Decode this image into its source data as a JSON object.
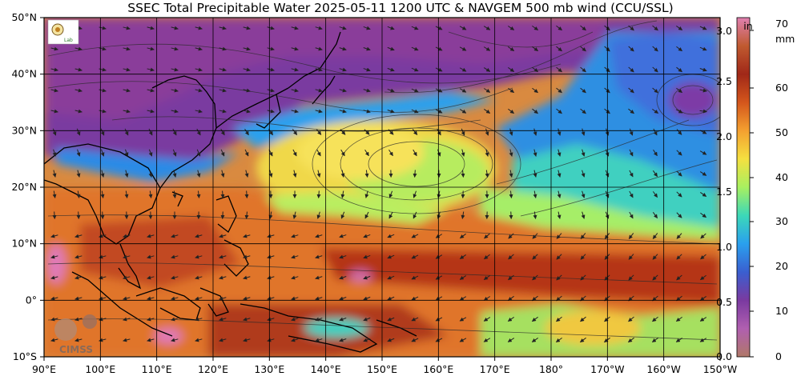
{
  "title": "SSEC Total Precipitable Water  2025-05-11 1200 UTC & NAVGEM 500 mb wind (CCU/SSL)",
  "lat_labels": [
    "50°N",
    "40°N",
    "30°N",
    "20°N",
    "10°N",
    "0°",
    "10°S"
  ],
  "lon_labels": [
    "90°E",
    "100°E",
    "110°E",
    "120°E",
    "130°E",
    "140°E",
    "150°E",
    "160°E",
    "170°E",
    "180°",
    "170°W",
    "160°W",
    "150°W"
  ],
  "colorbar": {
    "in_unit": "in",
    "mm_unit": "mm",
    "in_ticks": [
      "3.0",
      "2.5",
      "2.0",
      "1.5",
      "1.0",
      "0.5",
      "0.0"
    ],
    "mm_ticks": [
      "70",
      "60",
      "50",
      "40",
      "30",
      "20",
      "10",
      "0"
    ],
    "colors": [
      "#b07868",
      "#b05fb0",
      "#7a3aa0",
      "#3a5fd0",
      "#2aa0ee",
      "#3cd8b8",
      "#a8f060",
      "#f5e040",
      "#f4a030",
      "#d4561c",
      "#a02818",
      "#c05a30",
      "#e080b0"
    ]
  },
  "logos": {
    "lab": "Lab",
    "cimss": "CIMSS"
  },
  "colors": {
    "grid": "#000000",
    "border": "#000000"
  }
}
